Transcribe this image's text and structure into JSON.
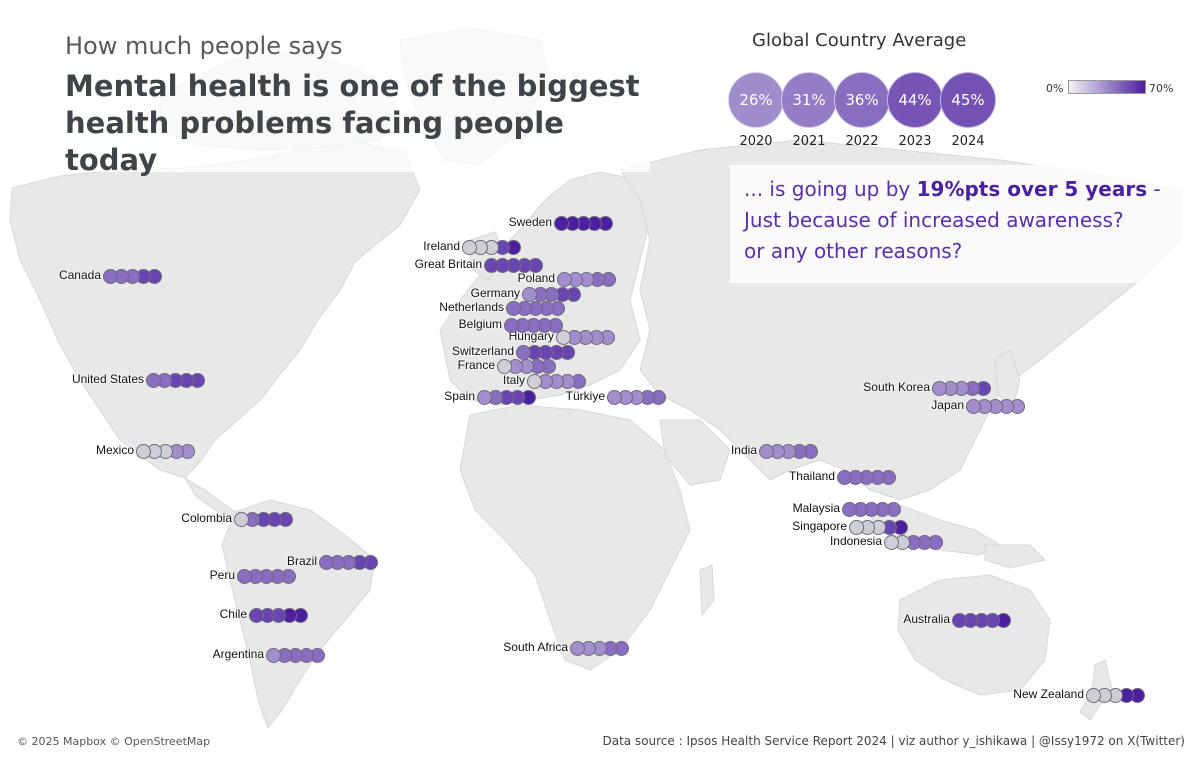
{
  "header": {
    "subtitle": "How much people says",
    "title": "Mental health is one of the biggest health problems facing people today"
  },
  "global_average": {
    "title": "Global Country Average",
    "entries": [
      {
        "year": "2020",
        "label": "26%",
        "value": 26
      },
      {
        "year": "2021",
        "label": "31%",
        "value": 31
      },
      {
        "year": "2022",
        "label": "36%",
        "value": 36
      },
      {
        "year": "2023",
        "label": "44%",
        "value": 44
      },
      {
        "year": "2024",
        "label": "45%",
        "value": 45
      }
    ]
  },
  "legend": {
    "min_label": "0%",
    "max_label": "70%",
    "min_color": "#f2f2f4",
    "max_color": "#4b1fa0"
  },
  "message": {
    "line1_prefix": "... is going up by ",
    "line1_bold": "19%pts over 5 years",
    "line1_suffix": " -",
    "line2": "Just because of increased awareness?",
    "line3": "or any other reasons?"
  },
  "colors": {
    "light": "#cfcdd6",
    "mid": "#a48dcc",
    "medium": "#8a6cc0",
    "dark": "#6a45b2",
    "darkest": "#4b1fa0",
    "land": "#e7e7e7",
    "ocean": "#ffffff"
  },
  "countries": [
    {
      "name": "Sweden",
      "levels": [
        4,
        4,
        4,
        4,
        4
      ]
    },
    {
      "name": "Ireland",
      "levels": [
        0,
        0,
        0,
        3,
        4
      ]
    },
    {
      "name": "Great Britain",
      "levels": [
        3,
        3,
        3,
        3,
        3
      ]
    },
    {
      "name": "Canada",
      "levels": [
        2,
        2,
        2,
        3,
        3
      ]
    },
    {
      "name": "Poland",
      "levels": [
        1,
        1,
        1,
        2,
        2
      ]
    },
    {
      "name": "Germany",
      "levels": [
        1,
        2,
        2,
        3,
        3
      ]
    },
    {
      "name": "Netherlands",
      "levels": [
        2,
        2,
        2,
        2,
        2
      ]
    },
    {
      "name": "Belgium",
      "levels": [
        2,
        2,
        2,
        2,
        2
      ]
    },
    {
      "name": "Hungary",
      "levels": [
        0,
        1,
        1,
        1,
        1
      ]
    },
    {
      "name": "Switzerland",
      "levels": [
        2,
        3,
        3,
        3,
        3
      ]
    },
    {
      "name": "France",
      "levels": [
        0,
        1,
        1,
        2,
        2
      ]
    },
    {
      "name": "Italy",
      "levels": [
        0,
        1,
        1,
        1,
        2
      ]
    },
    {
      "name": "Spain",
      "levels": [
        1,
        2,
        3,
        3,
        4
      ]
    },
    {
      "name": "Türkiye",
      "levels": [
        1,
        1,
        1,
        2,
        2
      ]
    },
    {
      "name": "United States",
      "levels": [
        2,
        2,
        3,
        3,
        3
      ]
    },
    {
      "name": "Mexico",
      "levels": [
        0,
        0,
        0,
        1,
        1
      ]
    },
    {
      "name": "Colombia",
      "levels": [
        0,
        2,
        3,
        3,
        3
      ]
    },
    {
      "name": "Brazil",
      "levels": [
        2,
        2,
        2,
        3,
        3
      ]
    },
    {
      "name": "Peru",
      "levels": [
        2,
        2,
        2,
        2,
        2
      ]
    },
    {
      "name": "Chile",
      "levels": [
        3,
        3,
        3,
        4,
        4
      ]
    },
    {
      "name": "Argentina",
      "levels": [
        1,
        2,
        2,
        2,
        2
      ]
    },
    {
      "name": "South Africa",
      "levels": [
        1,
        1,
        1,
        2,
        2
      ]
    },
    {
      "name": "India",
      "levels": [
        1,
        1,
        1,
        2,
        2
      ]
    },
    {
      "name": "South Korea",
      "levels": [
        1,
        1,
        1,
        2,
        3
      ]
    },
    {
      "name": "Japan",
      "levels": [
        1,
        1,
        1,
        1,
        1
      ]
    },
    {
      "name": "Thailand",
      "levels": [
        2,
        2,
        2,
        2,
        2
      ]
    },
    {
      "name": "Malaysia",
      "levels": [
        2,
        2,
        2,
        2,
        2
      ]
    },
    {
      "name": "Singapore",
      "levels": [
        0,
        0,
        0,
        3,
        4
      ]
    },
    {
      "name": "Indonesia",
      "levels": [
        0,
        0,
        2,
        2,
        2
      ]
    },
    {
      "name": "Australia",
      "levels": [
        3,
        3,
        3,
        3,
        4
      ]
    },
    {
      "name": "New Zealand",
      "levels": [
        0,
        0,
        0,
        4,
        4
      ]
    }
  ],
  "footer": {
    "attribution": "© 2025 Mapbox © OpenStreetMap",
    "source": "Data source : Ipsos Health Service Report 2024 | viz author y_ishikawa | @Issy1972 on X(Twitter)"
  }
}
